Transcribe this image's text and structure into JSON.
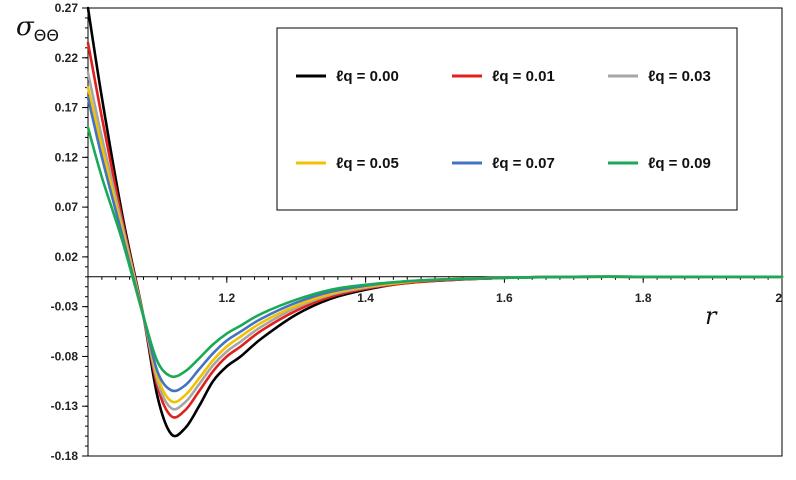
{
  "chart_data": {
    "type": "line",
    "ylabel": {
      "symbol": "σ",
      "subscript": "ΘΘ"
    },
    "xlabel": "r",
    "xlim": [
      1.0,
      2.0
    ],
    "ylim": [
      -0.18,
      0.27
    ],
    "x_ticks": [
      {
        "value": 1.2,
        "label": "1.2"
      },
      {
        "value": 1.4,
        "label": "1.4"
      },
      {
        "value": 1.6,
        "label": "1.6"
      },
      {
        "value": 1.8,
        "label": "1.8"
      },
      {
        "value": 2.0,
        "label": "2"
      }
    ],
    "y_ticks": [
      {
        "value": 0.27,
        "label": "0.27"
      },
      {
        "value": 0.22,
        "label": "0.22"
      },
      {
        "value": 0.17,
        "label": "0.17"
      },
      {
        "value": 0.12,
        "label": "0.12"
      },
      {
        "value": 0.07,
        "label": "0.07"
      },
      {
        "value": 0.02,
        "label": "0.02"
      },
      {
        "value": -0.03,
        "label": "-0.03"
      },
      {
        "value": -0.08,
        "label": "-0.08"
      },
      {
        "value": -0.13,
        "label": "-0.13"
      },
      {
        "value": -0.18,
        "label": "-0.18"
      }
    ],
    "legend_position": "top-right",
    "series": [
      {
        "name": "ℓq = 0.00",
        "color": "#000000",
        "x": [
          1.0,
          1.02,
          1.05,
          1.08,
          1.1,
          1.12,
          1.14,
          1.16,
          1.18,
          1.2,
          1.22,
          1.25,
          1.3,
          1.35,
          1.4,
          1.45,
          1.5,
          1.6,
          1.7,
          1.8,
          1.9,
          2.0
        ],
        "y": [
          0.27,
          0.18,
          0.06,
          -0.04,
          -0.12,
          -0.158,
          -0.152,
          -0.13,
          -0.105,
          -0.09,
          -0.08,
          -0.062,
          -0.038,
          -0.022,
          -0.013,
          -0.007,
          -0.004,
          -0.001,
          0.0,
          0.0,
          0.0,
          0.0
        ]
      },
      {
        "name": "ℓq = 0.01",
        "color": "#e0201c",
        "x": [
          1.0,
          1.02,
          1.05,
          1.08,
          1.1,
          1.12,
          1.14,
          1.16,
          1.18,
          1.2,
          1.22,
          1.25,
          1.3,
          1.35,
          1.4,
          1.45,
          1.5,
          1.6,
          1.7,
          1.8,
          1.9,
          2.0
        ],
        "y": [
          0.235,
          0.16,
          0.055,
          -0.04,
          -0.11,
          -0.14,
          -0.134,
          -0.115,
          -0.095,
          -0.08,
          -0.07,
          -0.054,
          -0.034,
          -0.02,
          -0.012,
          -0.007,
          -0.004,
          -0.001,
          0.0,
          0.0,
          0.0,
          0.0
        ]
      },
      {
        "name": "ℓq = 0.03",
        "color": "#a6a6a6",
        "x": [
          1.0,
          1.02,
          1.05,
          1.08,
          1.1,
          1.12,
          1.14,
          1.16,
          1.18,
          1.2,
          1.22,
          1.25,
          1.3,
          1.35,
          1.4,
          1.45,
          1.5,
          1.6,
          1.7,
          1.8,
          1.9,
          2.0
        ],
        "y": [
          0.205,
          0.14,
          0.05,
          -0.04,
          -0.105,
          -0.132,
          -0.126,
          -0.108,
          -0.089,
          -0.075,
          -0.065,
          -0.05,
          -0.031,
          -0.018,
          -0.011,
          -0.006,
          -0.003,
          -0.001,
          0.0,
          0.0,
          0.0,
          0.0
        ]
      },
      {
        "name": "ℓq = 0.05",
        "color": "#f2c200",
        "x": [
          1.0,
          1.02,
          1.05,
          1.08,
          1.1,
          1.12,
          1.14,
          1.16,
          1.18,
          1.2,
          1.22,
          1.25,
          1.3,
          1.35,
          1.4,
          1.45,
          1.5,
          1.6,
          1.7,
          1.8,
          1.9,
          2.0
        ],
        "y": [
          0.19,
          0.13,
          0.045,
          -0.04,
          -0.1,
          -0.125,
          -0.119,
          -0.102,
          -0.084,
          -0.07,
          -0.06,
          -0.046,
          -0.029,
          -0.017,
          -0.01,
          -0.006,
          -0.003,
          -0.001,
          0.0,
          0.0,
          0.0,
          0.0
        ]
      },
      {
        "name": "ℓq = 0.07",
        "color": "#4472c4",
        "x": [
          1.0,
          1.02,
          1.05,
          1.08,
          1.1,
          1.12,
          1.14,
          1.16,
          1.18,
          1.2,
          1.22,
          1.25,
          1.3,
          1.35,
          1.4,
          1.45,
          1.5,
          1.6,
          1.7,
          1.8,
          1.9,
          2.0
        ],
        "y": [
          0.18,
          0.12,
          0.04,
          -0.04,
          -0.095,
          -0.114,
          -0.109,
          -0.093,
          -0.077,
          -0.064,
          -0.055,
          -0.042,
          -0.026,
          -0.015,
          -0.009,
          -0.005,
          -0.003,
          -0.001,
          0.0,
          0.0,
          0.0,
          0.0
        ]
      },
      {
        "name": "ℓq = 0.09",
        "color": "#1aaa55",
        "x": [
          1.0,
          1.02,
          1.05,
          1.08,
          1.1,
          1.12,
          1.14,
          1.16,
          1.18,
          1.2,
          1.22,
          1.25,
          1.3,
          1.35,
          1.4,
          1.45,
          1.5,
          1.6,
          1.7,
          1.8,
          1.9,
          2.0
        ],
        "y": [
          0.15,
          0.1,
          0.035,
          -0.04,
          -0.085,
          -0.1,
          -0.095,
          -0.082,
          -0.068,
          -0.057,
          -0.049,
          -0.037,
          -0.023,
          -0.013,
          -0.008,
          -0.005,
          -0.003,
          -0.001,
          0.0,
          0.0,
          0.0,
          0.0
        ]
      }
    ]
  }
}
